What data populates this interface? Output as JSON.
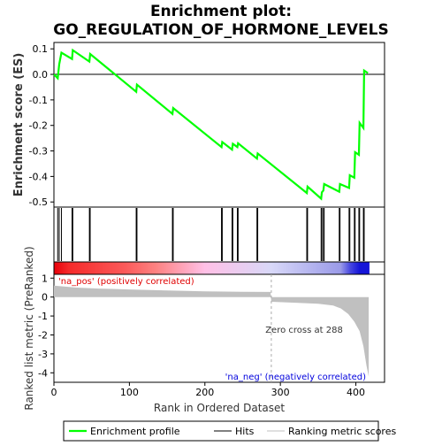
{
  "chart_data": {
    "type": "line",
    "title_lines": [
      "Enrichment plot:",
      "GO_REGULATION_OF_HORMONE_LEVELS"
    ],
    "top_panel": {
      "ylabel": "Enrichment score (ES)",
      "ylim": [
        -0.52,
        0.125
      ],
      "yticks": [
        0.1,
        0.0,
        -0.1,
        -0.2,
        -0.3,
        -0.4,
        -0.5
      ],
      "ytick_labels": [
        "0.1",
        "0.0",
        "-0.1",
        "-0.2",
        "-0.3",
        "-0.4",
        "-0.5"
      ],
      "series": [
        {
          "name": "Enrichment profile",
          "color": "#00ff00",
          "x": [
            0,
            5,
            7,
            10,
            24,
            25,
            47,
            48,
            109,
            110,
            157,
            158,
            222,
            223,
            236,
            237,
            243,
            244,
            269,
            270,
            335,
            336,
            354,
            355,
            357,
            358,
            378,
            379,
            391,
            392,
            398,
            399,
            404,
            405,
            410,
            411,
            416
          ],
          "y": [
            0.0,
            -0.015,
            0.04,
            0.085,
            0.06,
            0.095,
            0.05,
            0.08,
            -0.068,
            -0.04,
            -0.155,
            -0.132,
            -0.285,
            -0.265,
            -0.295,
            -0.272,
            -0.285,
            -0.27,
            -0.33,
            -0.31,
            -0.465,
            -0.44,
            -0.487,
            -0.462,
            -0.455,
            -0.43,
            -0.46,
            -0.43,
            -0.445,
            -0.395,
            -0.405,
            -0.305,
            -0.315,
            -0.19,
            -0.21,
            0.015,
            0.005
          ]
        }
      ]
    },
    "hits": {
      "name": "Hits",
      "x": [
        5,
        7,
        10,
        24,
        25,
        47,
        48,
        109,
        110,
        157,
        158,
        222,
        223,
        236,
        237,
        243,
        244,
        269,
        270,
        335,
        336,
        354,
        355,
        357,
        358,
        378,
        379,
        391,
        392,
        398,
        399,
        404,
        405,
        410,
        411
      ]
    },
    "gradient_bar": {
      "stops": [
        {
          "x": 0,
          "color": "#e8000a"
        },
        {
          "x": 20,
          "color": "#f52a2a"
        },
        {
          "x": 95,
          "color": "#fb5a5a"
        },
        {
          "x": 135,
          "color": "#fd8282"
        },
        {
          "x": 200,
          "color": "#ffc0e6"
        },
        {
          "x": 288,
          "color": "#d8d8f8"
        },
        {
          "x": 380,
          "color": "#9a9ae8"
        },
        {
          "x": 392,
          "color": "#4a4ae0"
        },
        {
          "x": 405,
          "color": "#1515d8"
        },
        {
          "x": 418,
          "color": "#1515d8"
        }
      ]
    },
    "bottom_panel": {
      "ylabel": "Ranked list metric (PreRanked)",
      "ylim": [
        -4.5,
        1.2
      ],
      "yticks": [
        1,
        0,
        -1,
        -2,
        -3,
        -4
      ],
      "ytick_labels": [
        "1",
        "0",
        "-1",
        "-2",
        "-3",
        "-4"
      ],
      "metric": {
        "name": "Ranking metric scores",
        "x": [
          0,
          30,
          60,
          100,
          150,
          200,
          250,
          287,
          288,
          320,
          350,
          370,
          380,
          390,
          398,
          405,
          410,
          414,
          417
        ],
        "y": [
          0.6,
          0.5,
          0.45,
          0.4,
          0.35,
          0.3,
          0.28,
          0.27,
          -0.25,
          -0.3,
          -0.35,
          -0.45,
          -0.6,
          -0.9,
          -1.3,
          -1.8,
          -2.6,
          -3.6,
          -4.2
        ]
      },
      "zero_cross_x": 288,
      "annotations": {
        "pos_label": "'na_pos' (positively correlated)",
        "neg_label": "'na_neg' (negatively correlated)",
        "zero_cross_label": "Zero cross at 288"
      }
    },
    "x_axis": {
      "xlabel": "Rank in Ordered Dataset",
      "xlim": [
        0,
        438
      ],
      "xticks": [
        0,
        100,
        200,
        300,
        400
      ],
      "xtick_labels": [
        "0",
        "100",
        "200",
        "300",
        "400"
      ]
    },
    "legend": {
      "placement": "bottom",
      "entries": [
        {
          "label": "Enrichment profile",
          "color": "#00ff00",
          "kind": "line"
        },
        {
          "label": "Hits",
          "color": "#000000",
          "kind": "line"
        },
        {
          "label": "Ranking metric scores",
          "color": "#c0c0c0",
          "kind": "line"
        }
      ]
    },
    "colors": {
      "profile": "#00ff00",
      "pos_text": "#e00000",
      "neg_text": "#0000dd",
      "metric_fill": "#c0c0c0",
      "zero_line": "#aaaaaa"
    }
  }
}
